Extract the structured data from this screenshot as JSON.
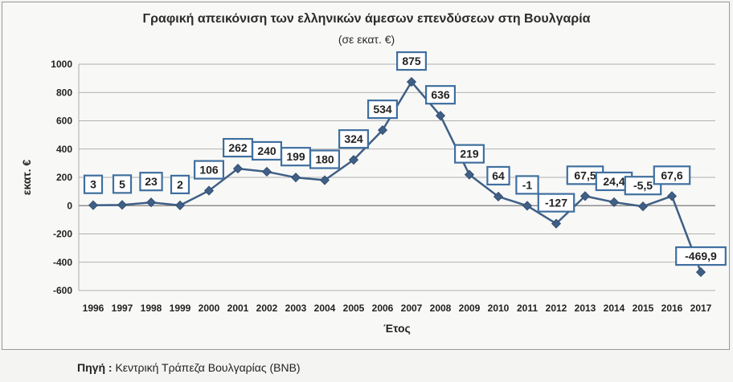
{
  "chart_data": {
    "type": "line",
    "title": "Γραφική απεικόνιση των ελληνικών άμεσων επενδύσεων στη Βουλγαρία",
    "subtitle": "(σε εκατ. €)",
    "xlabel": "Έτος",
    "ylabel": "εκατ. €",
    "ylim": [
      -600,
      1000
    ],
    "yticks": [
      "1000",
      "800",
      "600",
      "400",
      "200",
      "0",
      "-200",
      "-400",
      "-600"
    ],
    "ytick_values": [
      1000,
      800,
      600,
      400,
      200,
      0,
      -200,
      -400,
      -600
    ],
    "grid": "horizontal",
    "categories": [
      "1996",
      "1997",
      "1998",
      "1999",
      "2000",
      "2001",
      "2002",
      "2003",
      "2004",
      "2005",
      "2006",
      "2007",
      "2008",
      "2009",
      "2010",
      "2011",
      "2012",
      "2013",
      "2014",
      "2015",
      "2016",
      "2017"
    ],
    "values": [
      3,
      5,
      23,
      2,
      106,
      262,
      240,
      199,
      180,
      324,
      534,
      875,
      636,
      219,
      64,
      -1,
      -127,
      67.5,
      24.4,
      -5.5,
      67.6,
      -469.9
    ],
    "labels": [
      "3",
      "5",
      "23",
      "2",
      "106",
      "262",
      "240",
      "199",
      "180",
      "324",
      "534",
      "875",
      "636",
      "219",
      "64",
      "-1",
      "-127",
      "67,5",
      "24,4",
      "-5,5",
      "67,6",
      "-469,9"
    ],
    "line_color": "#3f5f86",
    "marker_color": "#3f5f86",
    "label_box_border": "#3f6f9f"
  },
  "footer": {
    "source_label": "Πηγή :",
    "source_text": " Κεντρική Τράπεζα Βουλγαρίας (BNB)"
  }
}
